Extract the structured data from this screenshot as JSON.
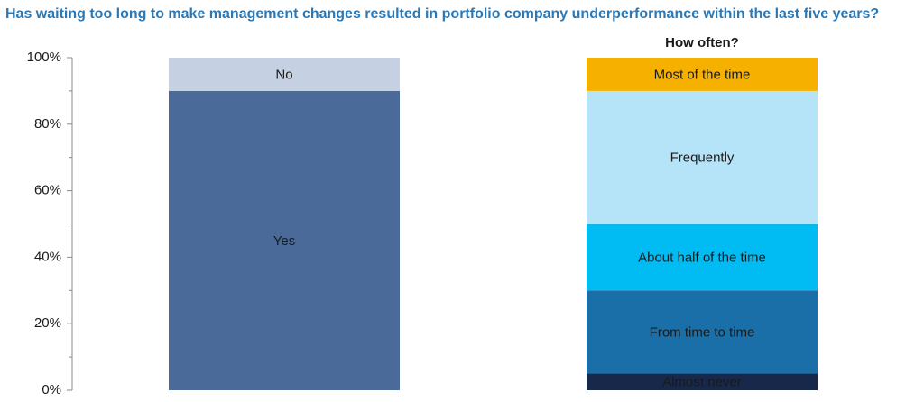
{
  "chart_data": {
    "type": "stacked_columns",
    "title": "Has waiting too long to make management changes resulted in portfolio company underperformance within the last five years?",
    "ylim": [
      0,
      100
    ],
    "yticks": [
      {
        "value": 0,
        "label": "0%"
      },
      {
        "value": 20,
        "label": "20%"
      },
      {
        "value": 40,
        "label": "40%"
      },
      {
        "value": 60,
        "label": "60%"
      },
      {
        "value": 80,
        "label": "80%"
      },
      {
        "value": 100,
        "label": "100%"
      }
    ],
    "minor_yticks": [
      10,
      30,
      50,
      70,
      90
    ],
    "bars": [
      {
        "segments": [
          {
            "name": "Yes",
            "value": 90,
            "color": "#4a6a99"
          },
          {
            "name": "No",
            "value": 10,
            "color": "#c5d0e2"
          }
        ]
      },
      {
        "title": "How often?",
        "segments": [
          {
            "name": "Almost never",
            "value": 5,
            "color": "#17284a"
          },
          {
            "name": "From time to time",
            "value": 25,
            "color": "#1a6fa8"
          },
          {
            "name": "About half of the time",
            "value": 20,
            "color": "#00bcf2"
          },
          {
            "name": "Frequently",
            "value": 40,
            "color": "#b5e3f8"
          },
          {
            "name": "Most of the time",
            "value": 10,
            "color": "#f5b000"
          }
        ]
      }
    ]
  }
}
